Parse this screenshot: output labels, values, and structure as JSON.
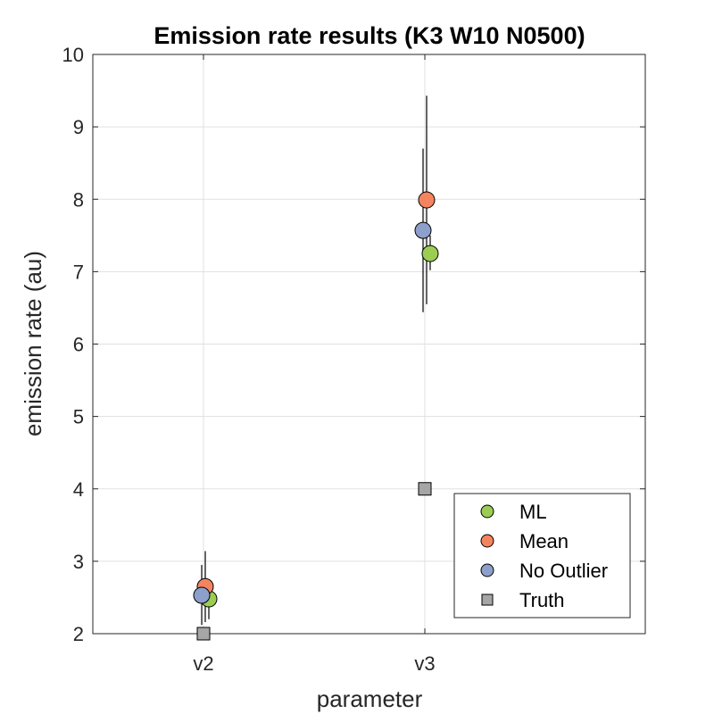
{
  "chart_data": {
    "type": "scatter",
    "title": "Emission rate results (K3 W10 N0500)",
    "xlabel": "parameter",
    "ylabel": "emission rate (au)",
    "categories": [
      "v2",
      "v3"
    ],
    "ylim": [
      2,
      10
    ],
    "yticks": [
      2,
      3,
      4,
      5,
      6,
      7,
      8,
      9,
      10
    ],
    "grid": true,
    "legend_position": "bottom-right",
    "series": [
      {
        "name": "ML",
        "marker": "circle",
        "color": "#9ACD52",
        "points": [
          {
            "category": "v2",
            "y": 2.48,
            "err_low": 2.2,
            "err_high": 2.7
          },
          {
            "category": "v3",
            "y": 7.25,
            "err_low": 7.02,
            "err_high": 7.5
          }
        ]
      },
      {
        "name": "Mean",
        "marker": "circle",
        "color": "#F4845F",
        "points": [
          {
            "category": "v2",
            "y": 2.65,
            "err_low": 2.16,
            "err_high": 3.14
          },
          {
            "category": "v3",
            "y": 7.99,
            "err_low": 6.55,
            "err_high": 9.43
          }
        ]
      },
      {
        "name": "No Outlier",
        "marker": "circle",
        "color": "#8DA0CB",
        "points": [
          {
            "category": "v2",
            "y": 2.53,
            "err_low": 2.12,
            "err_high": 2.95
          },
          {
            "category": "v3",
            "y": 7.57,
            "err_low": 6.44,
            "err_high": 8.7
          }
        ]
      },
      {
        "name": "Truth",
        "marker": "square",
        "color": "#A6A6A6",
        "points": [
          {
            "category": "v2",
            "y": 2.0
          },
          {
            "category": "v3",
            "y": 4.0
          }
        ]
      }
    ]
  }
}
